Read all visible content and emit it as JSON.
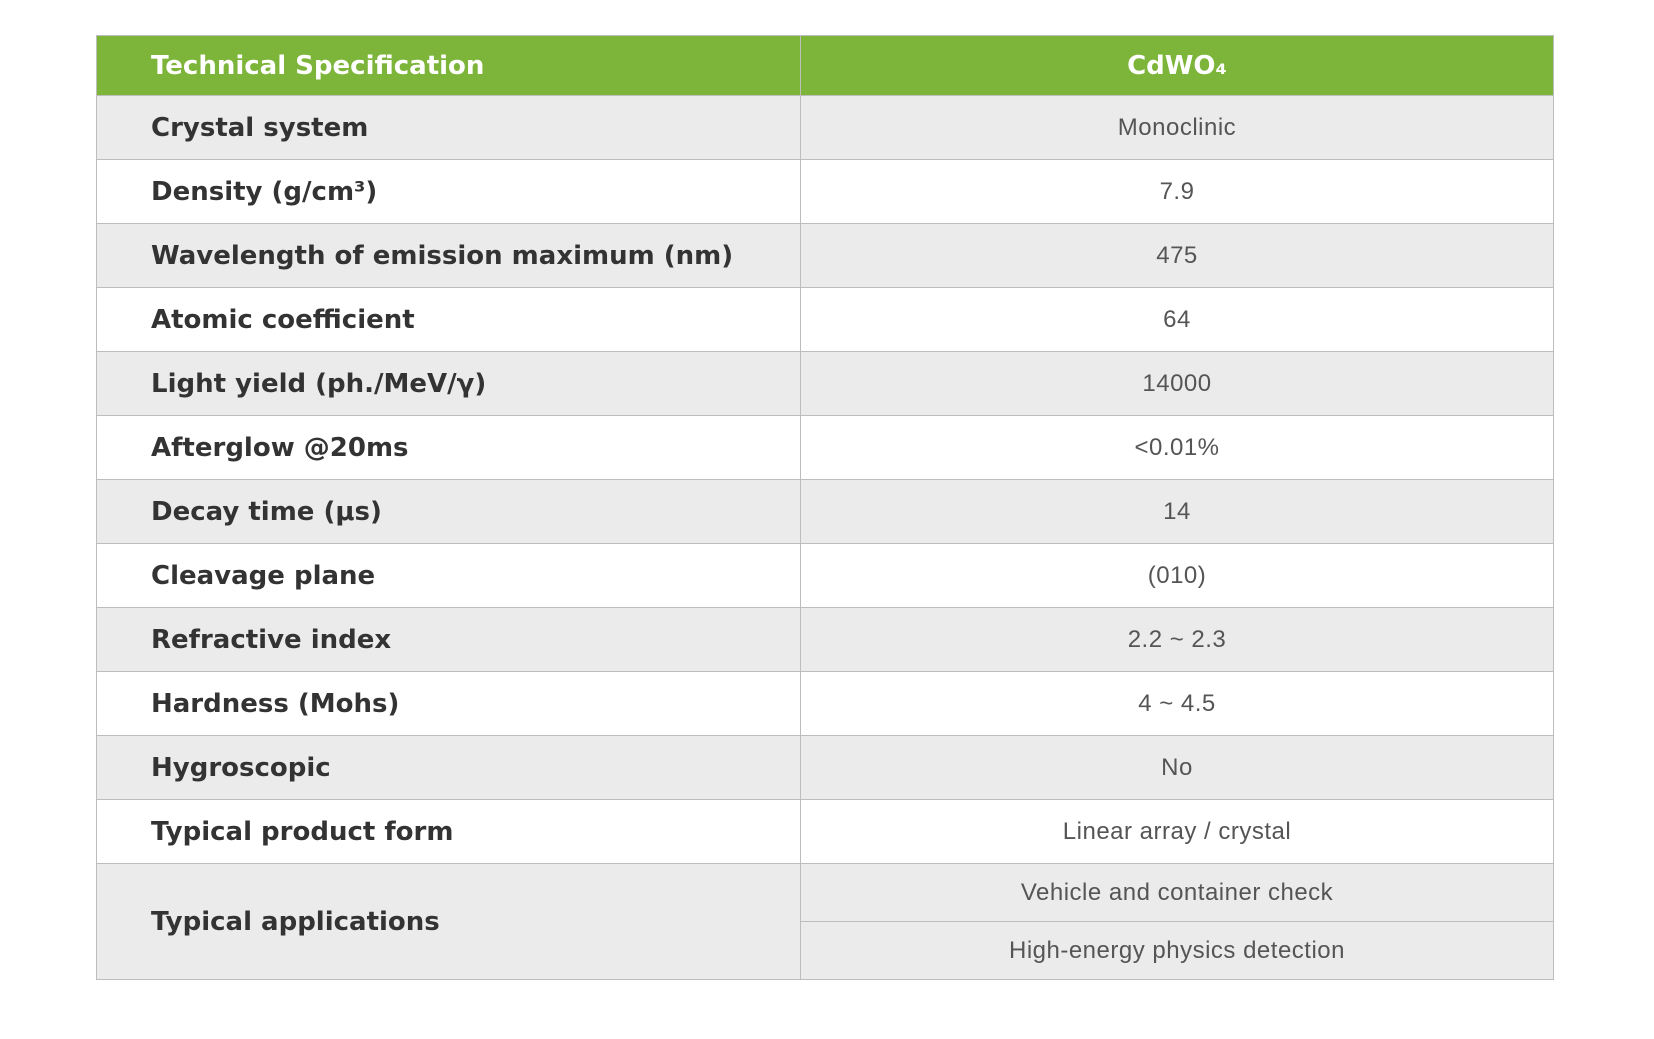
{
  "header": {
    "spec_label": "Technical Specification",
    "material": "CdWO₄"
  },
  "colors": {
    "header_bg": "#7db53a",
    "row_alt_bg": "#ebebeb"
  },
  "rows": [
    {
      "label": "Crystal system",
      "value": "Monoclinic"
    },
    {
      "label": "Density (g/cm³)",
      "value": "7.9"
    },
    {
      "label": "Wavelength of emission maximum (nm)",
      "value": "475"
    },
    {
      "label": "Atomic coefficient",
      "value": "64"
    },
    {
      "label": "Light yield (ph./MeV/γ)",
      "value": "14000"
    },
    {
      "label": "Afterglow @20ms",
      "value": "<0.01%"
    },
    {
      "label": "Decay time (μs)",
      "value": "14"
    },
    {
      "label": "Cleavage plane",
      "value": "(010)"
    },
    {
      "label": "Refractive index",
      "value": "2.2 ~ 2.3"
    },
    {
      "label": "Hardness (Mohs)",
      "value": "4 ~ 4.5"
    },
    {
      "label": "Hygroscopic",
      "value": "No"
    },
    {
      "label": "Typical product form",
      "value": "Linear array / crystal"
    }
  ],
  "applications": {
    "label": "Typical applications",
    "values": [
      "Vehicle and container check",
      "High-energy physics detection"
    ]
  }
}
